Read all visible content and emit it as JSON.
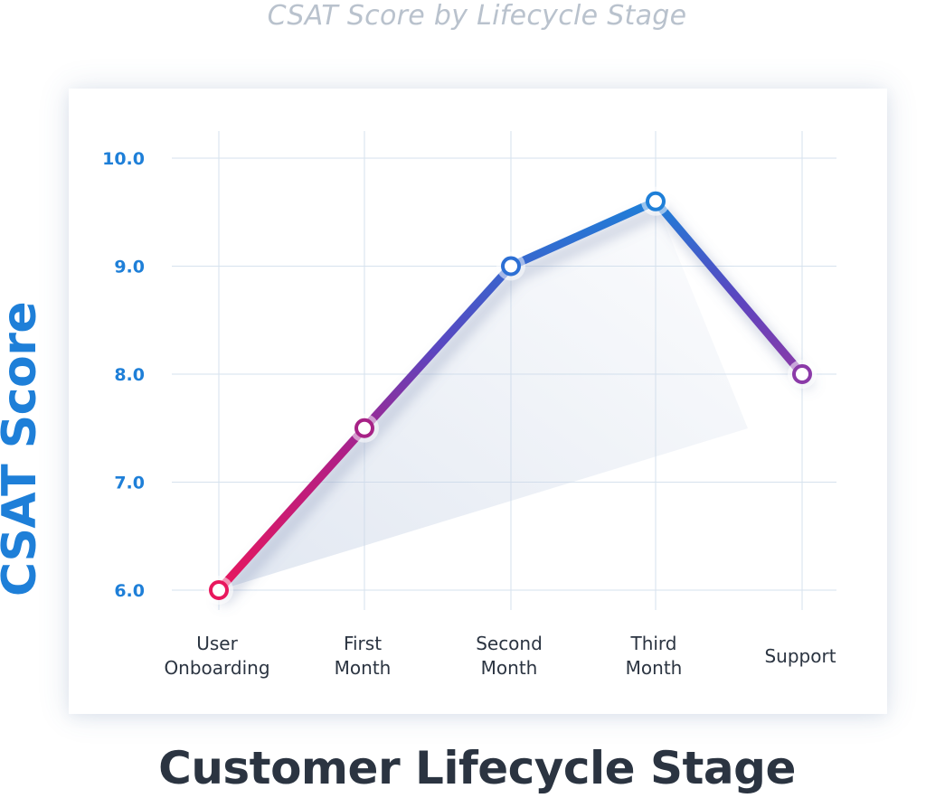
{
  "chart_data": {
    "type": "line",
    "title": "CSAT Score by Lifecycle Stage",
    "xlabel": "Customer Lifecycle Stage",
    "ylabel": "CSAT Score",
    "categories": [
      [
        "User",
        "Onboarding"
      ],
      [
        "First",
        "Month"
      ],
      [
        "Second",
        "Month"
      ],
      [
        "Third",
        "Month"
      ],
      [
        "Support"
      ]
    ],
    "values": [
      6.0,
      7.5,
      9.0,
      9.6,
      8.0
    ],
    "ylim": [
      6.0,
      10.0
    ],
    "yticks": [
      "10.0",
      "9.0",
      "8.0",
      "7.0",
      "6.0"
    ],
    "grid": true,
    "legend": "none",
    "colors": {
      "line_start": "#e8175d",
      "line_mid": "#6a3bb5",
      "line_end": "#1e7fd8",
      "line_tail": "#8b3aa8",
      "tick_text": "#1e7fd8",
      "axis_title": "#1e7fd8",
      "xaxis_title": "#2b3441",
      "title": "#b9c2cd",
      "grid": "#d6e2ee"
    }
  }
}
